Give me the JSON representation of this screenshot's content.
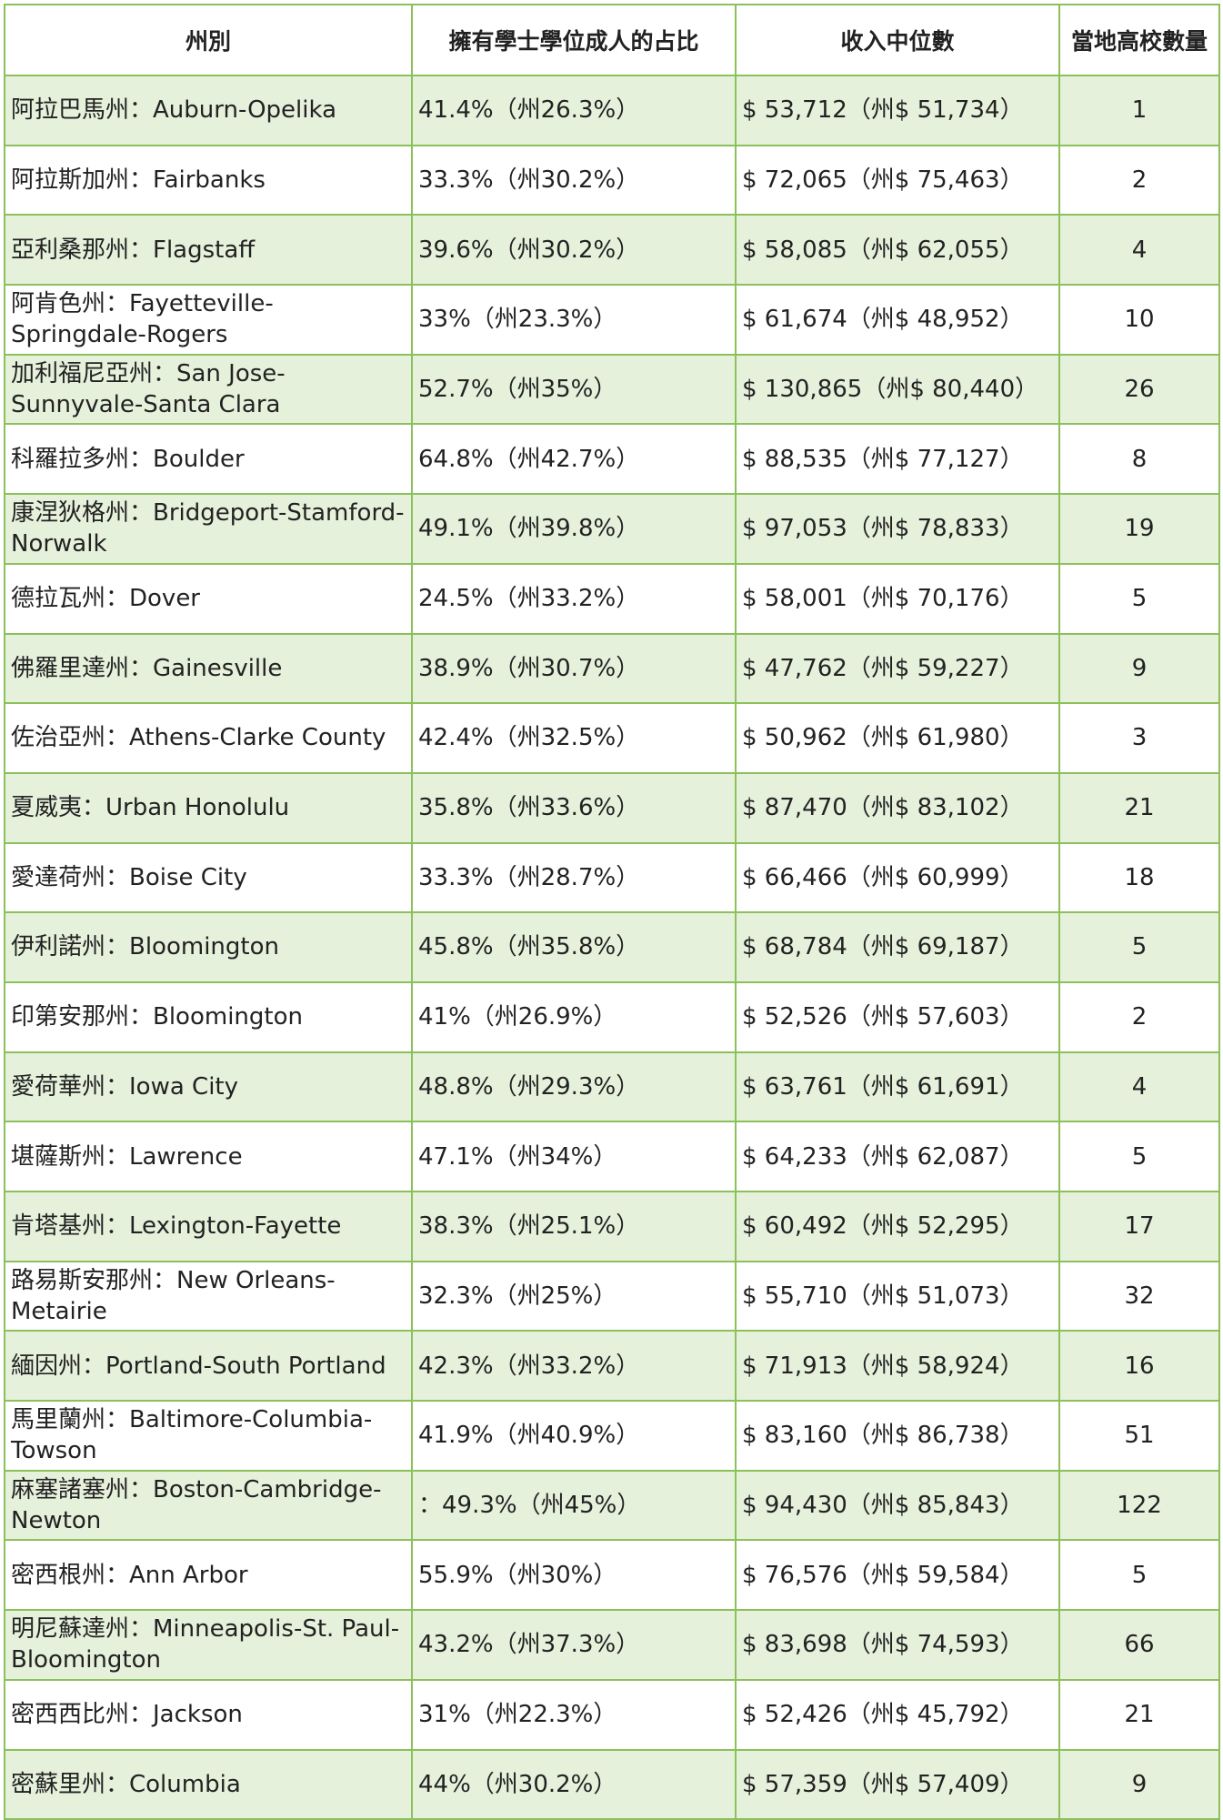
{
  "table": {
    "headers": [
      "州別",
      "擁有學士學位成人的占比",
      "收入中位數",
      "當地高校數量"
    ],
    "rows": [
      [
        "阿拉巴馬州：Auburn-Opelika",
        "41.4%（州26.3%）",
        "$ 53,712（州$ 51,734）",
        "1"
      ],
      [
        "阿拉斯加州：Fairbanks",
        "33.3%（州30.2%）",
        "$ 72,065（州$ 75,463）",
        "2"
      ],
      [
        "亞利桑那州：Flagstaff",
        "39.6%（州30.2%）",
        "$ 58,085（州$ 62,055）",
        "4"
      ],
      [
        "阿肯色州：Fayetteville-Springdale-Rogers",
        "33%（州23.3%）",
        "$ 61,674（州$ 48,952）",
        "10"
      ],
      [
        "加利福尼亞州：San Jose-Sunnyvale-Santa Clara",
        "52.7%（州35%）",
        "$ 130,865（州$ 80,440）",
        "26"
      ],
      [
        "科羅拉多州：Boulder",
        "64.8%（州42.7%）",
        "$ 88,535（州$ 77,127）",
        "8"
      ],
      [
        "康涅狄格州：Bridgeport-Stamford-Norwalk",
        "49.1%（州39.8%）",
        "$ 97,053（州$ 78,833）",
        "19"
      ],
      [
        "德拉瓦州：Dover",
        "24.5%（州33.2%）",
        "$ 58,001（州$ 70,176）",
        "5"
      ],
      [
        "佛羅里達州：Gainesville",
        "38.9%（州30.7%）",
        "$ 47,762（州$ 59,227）",
        "9"
      ],
      [
        "佐治亞州：Athens-Clarke County",
        "42.4%（州32.5%）",
        "$ 50,962（州$ 61,980）",
        "3"
      ],
      [
        "夏威夷：Urban Honolulu",
        "35.8%（州33.6%）",
        "$ 87,470（州$ 83,102）",
        "21"
      ],
      [
        "愛達荷州：Boise City",
        "33.3%（州28.7%）",
        "$ 66,466（州$ 60,999）",
        "18"
      ],
      [
        "伊利諾州：Bloomington",
        "45.8%（州35.8%）",
        "$ 68,784（州$ 69,187）",
        "5"
      ],
      [
        "印第安那州：Bloomington",
        "41%（州26.9%）",
        "$ 52,526（州$ 57,603）",
        "2"
      ],
      [
        "愛荷華州：Iowa City",
        "48.8%（州29.3%）",
        "$ 63,761（州$ 61,691）",
        "4"
      ],
      [
        "堪薩斯州：Lawrence",
        "47.1%（州34%）",
        "$ 64,233（州$ 62,087）",
        "5"
      ],
      [
        "肯塔基州：Lexington-Fayette",
        "38.3%（州25.1%）",
        "$ 60,492（州$ 52,295）",
        "17"
      ],
      [
        "路易斯安那州：New Orleans-Metairie",
        "32.3%（州25%）",
        "$ 55,710（州$ 51,073）",
        "32"
      ],
      [
        "緬因州：Portland-South Portland",
        "42.3%（州33.2%）",
        "$ 71,913（州$ 58,924）",
        "16"
      ],
      [
        "馬里蘭州：Baltimore-Columbia-Towson",
        "41.9%（州40.9%）",
        "$ 83,160（州$ 86,738）",
        "51"
      ],
      [
        "麻塞諸塞州：Boston-Cambridge-Newton",
        "：49.3%（州45%）",
        "$ 94,430（州$ 85,843）",
        "122"
      ],
      [
        "密西根州：Ann Arbor",
        "55.9%（州30%）",
        "$ 76,576（州$ 59,584）",
        "5"
      ],
      [
        "明尼蘇達州：Minneapolis-St. Paul-Bloomington",
        "43.2%（州37.3%）",
        "$ 83,698（州$ 74,593）",
        "66"
      ],
      [
        "密西西比州：Jackson",
        "31%（州22.3%）",
        "$ 52,426（州$ 45,792）",
        "21"
      ],
      [
        "密蘇里州：Columbia",
        "44%（州30.2%）",
        "$ 57,359（州$ 57,409）",
        "9"
      ]
    ]
  },
  "colors": {
    "border": "#8cc05a",
    "row_shade": "#e6f1dc",
    "row_plain": "#ffffff"
  }
}
